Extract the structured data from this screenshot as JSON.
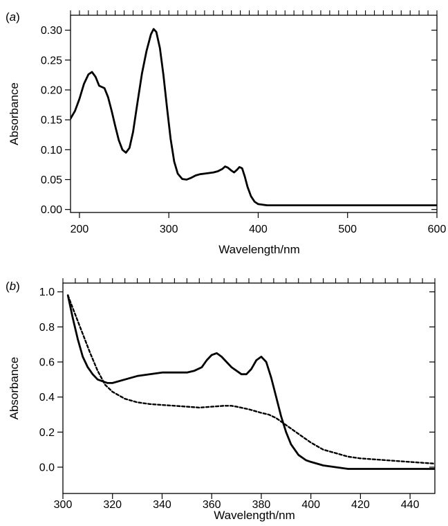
{
  "chart_data": [
    {
      "type": "line",
      "panel_label": "(a)",
      "panel_letter": "a",
      "xlabel": "Wavelength/nm",
      "ylabel": "Absorbance",
      "xlim": [
        190,
        600
      ],
      "ylim": [
        -0.005,
        0.325
      ],
      "xticks": [
        200,
        300,
        400,
        500,
        600
      ],
      "xtick_labels": [
        "200",
        "300",
        "400",
        "500",
        "600"
      ],
      "yticks": [
        0.0,
        0.05,
        0.1,
        0.15,
        0.2,
        0.25,
        0.3
      ],
      "ytick_labels": [
        "0.00",
        "0.05",
        "0.10",
        "0.15",
        "0.20",
        "0.25",
        "0.30"
      ],
      "grid": false,
      "series": [
        {
          "style": "solid",
          "color": "#000000",
          "x": [
            190,
            195,
            200,
            205,
            210,
            214,
            218,
            222,
            228,
            232,
            236,
            240,
            244,
            248,
            252,
            256,
            260,
            265,
            270,
            275,
            280,
            283,
            286,
            290,
            294,
            298,
            302,
            306,
            310,
            315,
            320,
            325,
            330,
            335,
            340,
            345,
            350,
            355,
            360,
            363,
            366,
            370,
            373,
            376,
            379,
            382,
            385,
            388,
            392,
            396,
            400,
            405,
            410,
            420,
            440,
            460,
            480,
            500,
            520,
            540,
            560,
            580,
            600
          ],
          "y": [
            0.152,
            0.165,
            0.185,
            0.21,
            0.226,
            0.23,
            0.222,
            0.207,
            0.203,
            0.188,
            0.165,
            0.14,
            0.116,
            0.1,
            0.095,
            0.103,
            0.13,
            0.18,
            0.228,
            0.265,
            0.293,
            0.302,
            0.297,
            0.27,
            0.225,
            0.17,
            0.118,
            0.08,
            0.06,
            0.051,
            0.05,
            0.053,
            0.057,
            0.059,
            0.06,
            0.061,
            0.062,
            0.064,
            0.068,
            0.072,
            0.07,
            0.065,
            0.062,
            0.066,
            0.071,
            0.069,
            0.055,
            0.038,
            0.022,
            0.013,
            0.009,
            0.008,
            0.007,
            0.007,
            0.007,
            0.007,
            0.007,
            0.007,
            0.007,
            0.007,
            0.007,
            0.007,
            0.007
          ]
        }
      ]
    },
    {
      "type": "line",
      "panel_label": "(b)",
      "panel_letter": "b",
      "xlabel": "Wavelength/nm",
      "ylabel": "Absorbance",
      "xlim": [
        300,
        450
      ],
      "ylim": [
        -0.15,
        1.05
      ],
      "xticks": [
        300,
        320,
        340,
        360,
        380,
        400,
        420,
        440
      ],
      "xtick_labels": [
        "300",
        "320",
        "340",
        "360",
        "380",
        "400",
        "420",
        "440"
      ],
      "yticks": [
        0.0,
        0.2,
        0.4,
        0.6,
        0.8,
        1.0
      ],
      "ytick_labels": [
        "0.0",
        "0.2",
        "0.4",
        "0.6",
        "0.8",
        "1.0"
      ],
      "grid": false,
      "series": [
        {
          "style": "solid",
          "color": "#000000",
          "x": [
            302,
            304,
            306,
            308,
            310,
            312,
            314,
            316,
            318,
            320,
            325,
            330,
            335,
            340,
            345,
            350,
            353,
            356,
            358,
            360,
            362,
            364,
            366,
            368,
            370,
            372,
            374,
            376,
            378,
            380,
            382,
            384,
            386,
            388,
            390,
            392,
            395,
            398,
            400,
            405,
            410,
            415,
            420,
            430,
            440,
            450
          ],
          "y": [
            0.98,
            0.85,
            0.73,
            0.63,
            0.57,
            0.53,
            0.5,
            0.49,
            0.48,
            0.48,
            0.5,
            0.52,
            0.53,
            0.54,
            0.54,
            0.54,
            0.55,
            0.57,
            0.61,
            0.64,
            0.65,
            0.63,
            0.6,
            0.57,
            0.55,
            0.53,
            0.53,
            0.56,
            0.61,
            0.63,
            0.6,
            0.51,
            0.4,
            0.29,
            0.2,
            0.13,
            0.07,
            0.04,
            0.03,
            0.01,
            0.0,
            -0.01,
            -0.01,
            -0.01,
            -0.01,
            -0.01
          ]
        },
        {
          "style": "dashed",
          "color": "#000000",
          "x": [
            302,
            305,
            308,
            311,
            314,
            317,
            320,
            325,
            330,
            335,
            340,
            345,
            350,
            355,
            360,
            365,
            368,
            370,
            375,
            380,
            383,
            386,
            390,
            395,
            400,
            405,
            410,
            415,
            420,
            430,
            440,
            450
          ],
          "y": [
            0.98,
            0.87,
            0.76,
            0.65,
            0.55,
            0.47,
            0.43,
            0.39,
            0.37,
            0.36,
            0.355,
            0.35,
            0.345,
            0.34,
            0.345,
            0.35,
            0.35,
            0.345,
            0.33,
            0.31,
            0.3,
            0.28,
            0.24,
            0.19,
            0.14,
            0.1,
            0.08,
            0.06,
            0.05,
            0.04,
            0.03,
            0.02
          ]
        }
      ]
    }
  ]
}
